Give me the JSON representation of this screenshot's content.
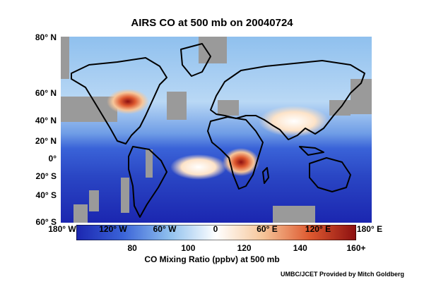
{
  "title": "AIRS CO at 500 mb on 20040724",
  "map": {
    "type": "heatmap",
    "projection": "equirectangular",
    "lon_range": [
      -180,
      180
    ],
    "lat_range": [
      -60,
      80
    ],
    "missing_color": "#9a9a9a",
    "coastline_color": "#000000",
    "lat_ticks": [
      "80° N",
      "60° N",
      "40° N",
      "20° N",
      "0°",
      "20° S",
      "40° S",
      "60° S"
    ],
    "lon_ticks": [
      "180° W",
      "120° W",
      "60° W",
      "0",
      "60° E",
      "120° E",
      "180° E"
    ]
  },
  "colorbar": {
    "min": 60,
    "max": 160,
    "ticks": [
      "80",
      "100",
      "120",
      "140",
      "160+"
    ],
    "tick_values": [
      80,
      100,
      120,
      140,
      160
    ],
    "label": "CO Mixing Ratio (ppbv) at 500 mb",
    "colors": [
      "#1b26b0",
      "#3a63d8",
      "#8fc0ee",
      "#ffffff",
      "#f6c69a",
      "#de5a30",
      "#8c0f10"
    ]
  },
  "credit": "UMBC/JCET Provided by Mitch Goldberg"
}
